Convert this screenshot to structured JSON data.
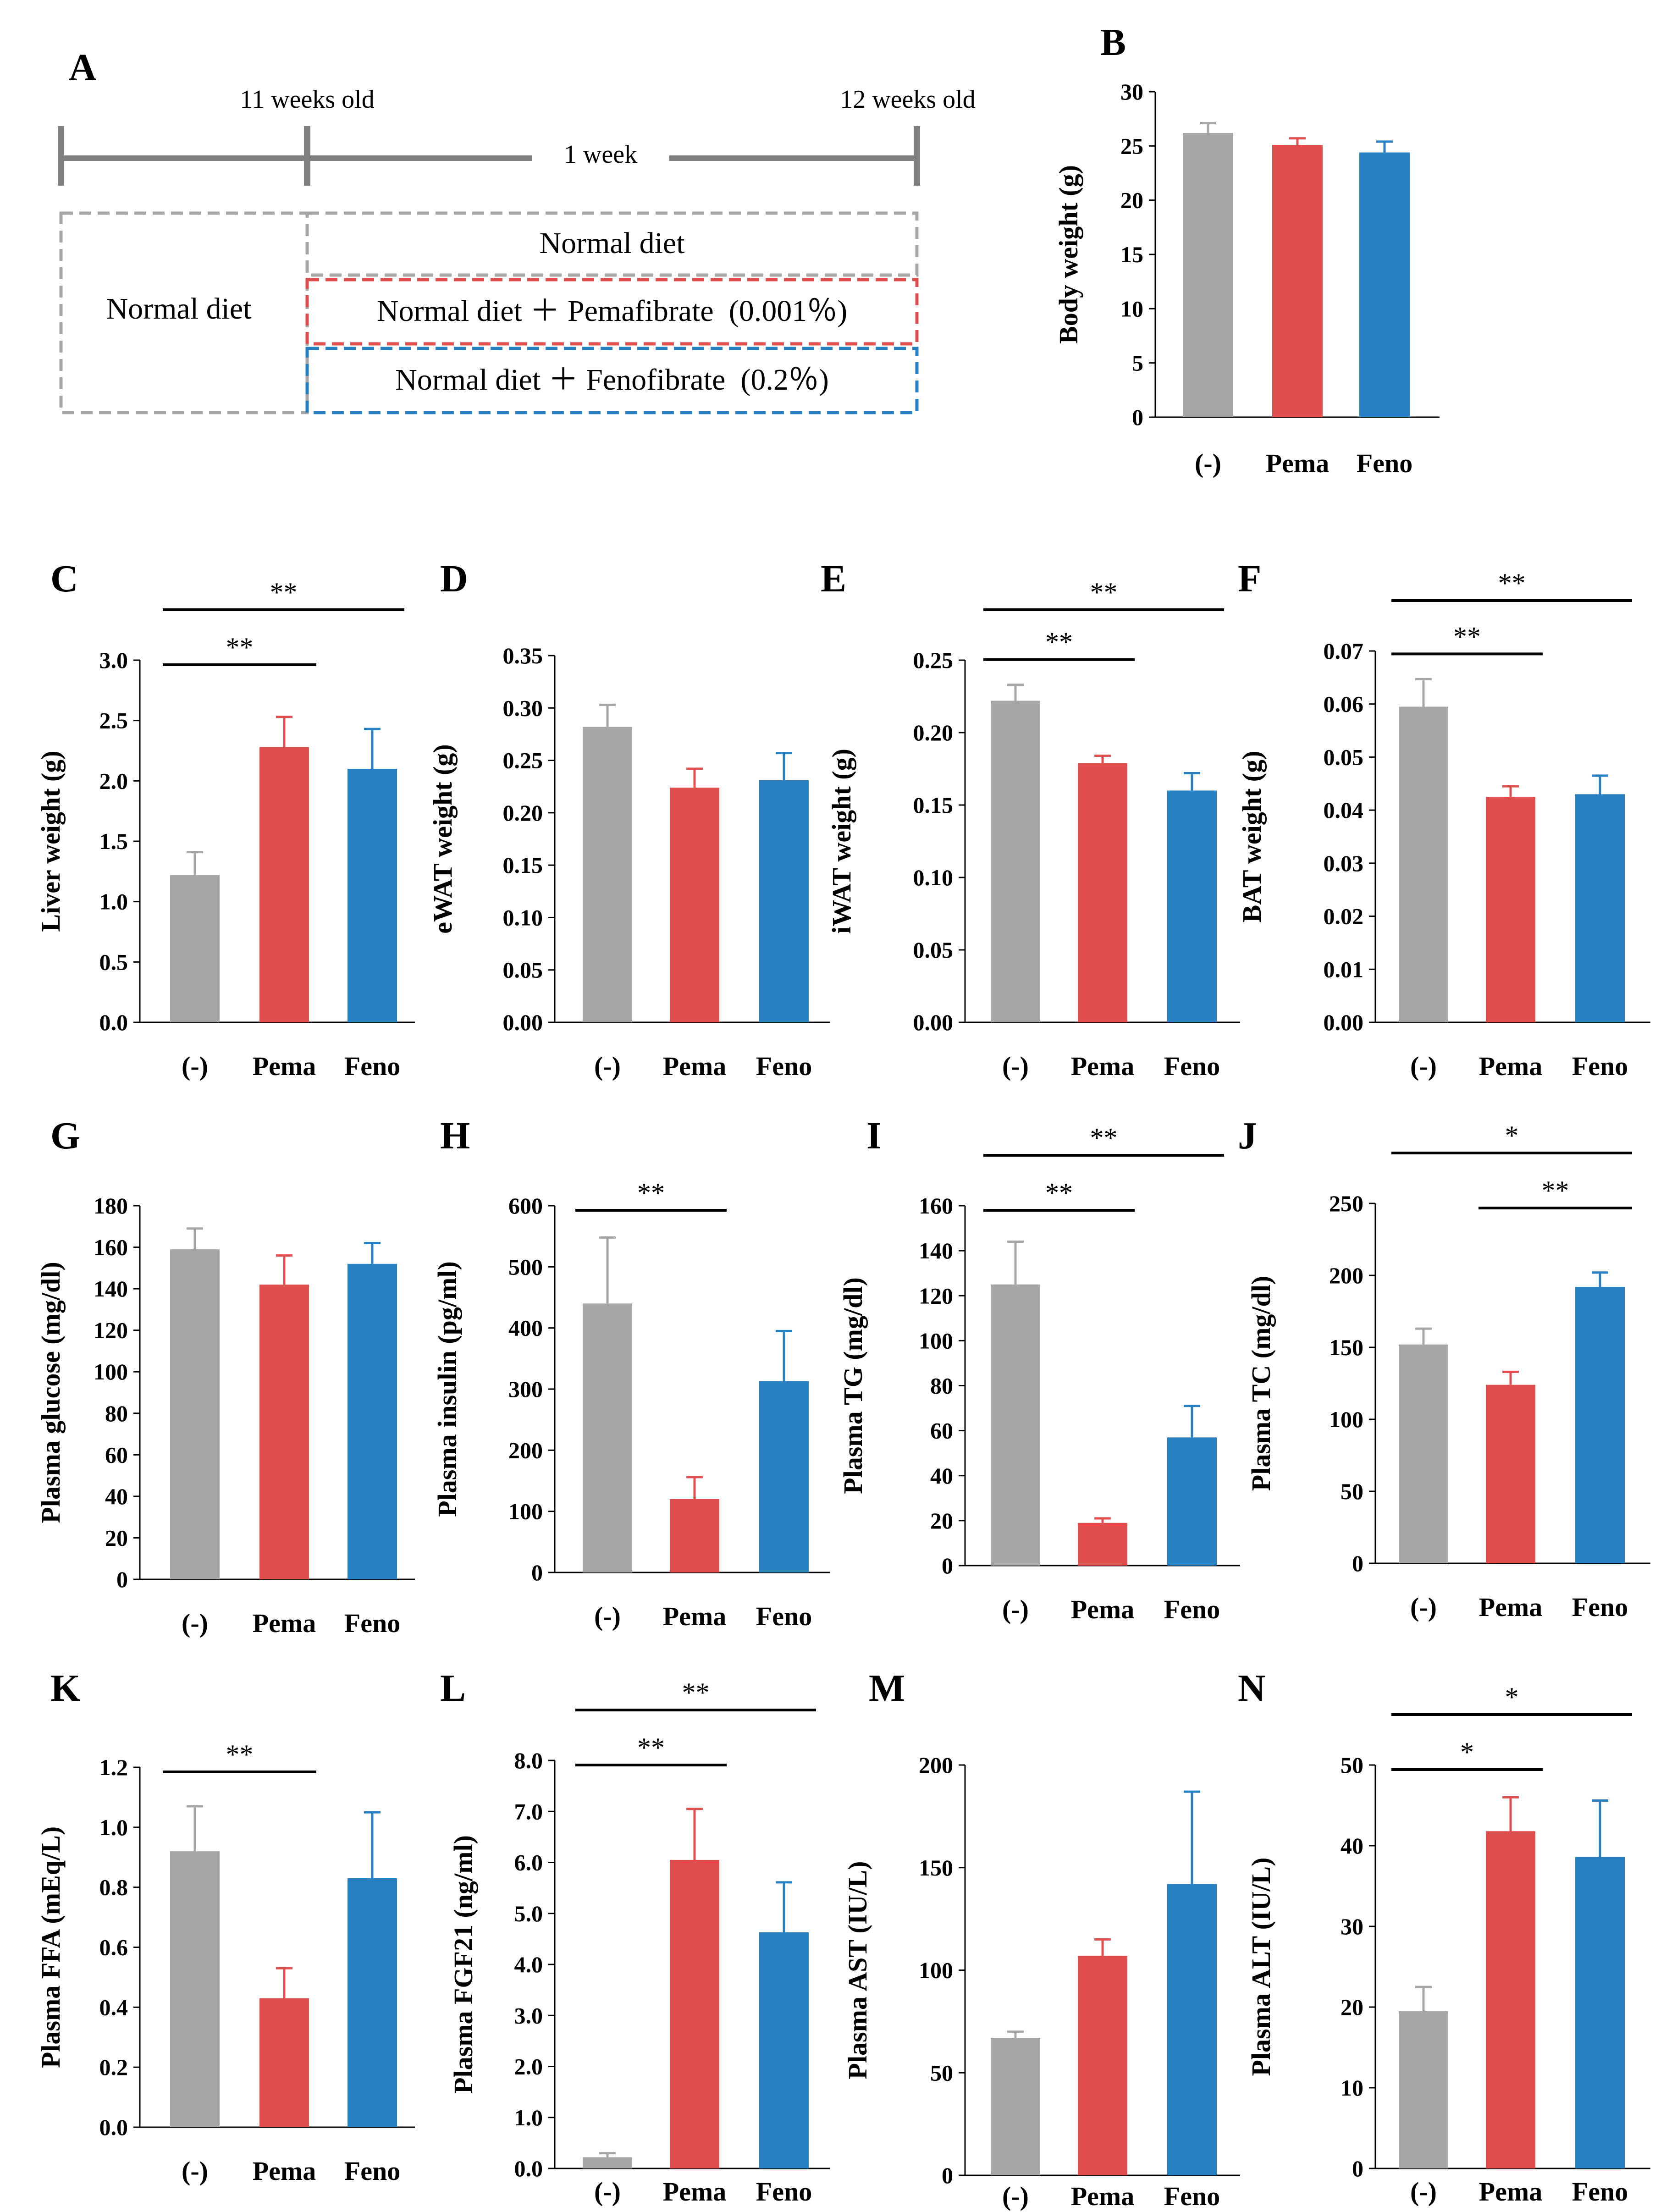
{
  "colors": {
    "control": "#a6a6a6",
    "pema": "#e04e4e",
    "feno": "#2680c2",
    "timeline": "#7f7f7f"
  },
  "panel_a": {
    "label": "A",
    "age_start": "11 weeks old",
    "age_end": "12 weeks old",
    "duration": "1 week",
    "baseline_diet": "Normal diet",
    "groups": [
      {
        "text": "Normal diet",
        "color": "#a6a6a6"
      },
      {
        "text": "Normal diet ＋ Pemafibrate  (0.001％)",
        "color": "#e04e4e"
      },
      {
        "text": "Normal diet ＋ Fenofibrate  (0.2％)",
        "color": "#2680c2"
      }
    ]
  },
  "chart_data": [
    {
      "id": "B",
      "label": "B",
      "type": "bar",
      "categories": [
        "(-)",
        "Pema",
        "Feno"
      ],
      "values": [
        26.2,
        25.1,
        24.4
      ],
      "errors": [
        0.9,
        0.6,
        1.0
      ],
      "ylabel": "Body weight (g)",
      "ylim": [
        0,
        30
      ],
      "ticks": [
        "0",
        "5",
        "10",
        "15",
        "20",
        "25",
        "30"
      ],
      "significance": []
    },
    {
      "id": "C",
      "label": "C",
      "type": "bar",
      "categories": [
        "(-)",
        "Pema",
        "Feno"
      ],
      "values": [
        1.22,
        2.28,
        2.1
      ],
      "errors": [
        0.19,
        0.25,
        0.33
      ],
      "ylabel": "Liver weight (g)",
      "ylim": [
        0,
        3
      ],
      "ticks": [
        "0.0",
        "0.5",
        "1.0",
        "1.5",
        "2.0",
        "2.5",
        "3.0"
      ],
      "significance": [
        {
          "from": 0,
          "to": 1,
          "label": "**"
        },
        {
          "from": 0,
          "to": 2,
          "label": "**"
        }
      ]
    },
    {
      "id": "D",
      "label": "D",
      "type": "bar",
      "categories": [
        "(-)",
        "Pema",
        "Feno"
      ],
      "values": [
        0.282,
        0.224,
        0.231
      ],
      "errors": [
        0.021,
        0.018,
        0.026
      ],
      "ylabel": "eWAT weight (g)",
      "ylim": [
        0,
        0.35
      ],
      "ticks": [
        "0.00",
        "0.05",
        "0.10",
        "0.15",
        "0.20",
        "0.25",
        "0.30",
        "0.35"
      ],
      "significance": []
    },
    {
      "id": "E",
      "label": "E",
      "type": "bar",
      "categories": [
        "(-)",
        "Pema",
        "Feno"
      ],
      "values": [
        0.222,
        0.179,
        0.16
      ],
      "errors": [
        0.011,
        0.005,
        0.012
      ],
      "ylabel": "iWAT weight (g)",
      "ylim": [
        0,
        0.25
      ],
      "ticks": [
        "0.00",
        "0.05",
        "0.10",
        "0.15",
        "0.20",
        "0.25"
      ],
      "significance": [
        {
          "from": 0,
          "to": 1,
          "label": "**"
        },
        {
          "from": 0,
          "to": 2,
          "label": "**"
        }
      ]
    },
    {
      "id": "F",
      "label": "F",
      "type": "bar",
      "categories": [
        "(-)",
        "Pema",
        "Feno"
      ],
      "values": [
        0.0595,
        0.0425,
        0.043
      ],
      "errors": [
        0.0052,
        0.002,
        0.0035
      ],
      "ylabel": "BAT weight (g)",
      "ylim": [
        0,
        0.07
      ],
      "ticks": [
        "0.00",
        "0.01",
        "0.02",
        "0.03",
        "0.04",
        "0.05",
        "0.06",
        "0.07"
      ],
      "significance": [
        {
          "from": 0,
          "to": 1,
          "label": "**"
        },
        {
          "from": 0,
          "to": 2,
          "label": "**"
        }
      ]
    },
    {
      "id": "G",
      "label": "G",
      "type": "bar",
      "categories": [
        "(-)",
        "Pema",
        "Feno"
      ],
      "values": [
        159,
        142,
        152
      ],
      "errors": [
        10,
        14,
        10
      ],
      "ylabel": "Plasma glucose (mg/dl)",
      "ylim": [
        0,
        180
      ],
      "ticks": [
        "0",
        "20",
        "40",
        "60",
        "80",
        "100",
        "120",
        "140",
        "160",
        "180"
      ],
      "significance": []
    },
    {
      "id": "H",
      "label": "H",
      "type": "bar",
      "categories": [
        "(-)",
        "Pema",
        "Feno"
      ],
      "values": [
        440,
        120,
        313
      ],
      "errors": [
        108,
        36,
        82
      ],
      "ylabel": "Plasma insulin (pg/ml)",
      "ylim": [
        0,
        600
      ],
      "ticks": [
        "0",
        "100",
        "200",
        "300",
        "400",
        "500",
        "600"
      ],
      "significance": [
        {
          "from": 0,
          "to": 1,
          "label": "**"
        }
      ]
    },
    {
      "id": "I",
      "label": "I",
      "type": "bar",
      "categories": [
        "(-)",
        "Pema",
        "Feno"
      ],
      "values": [
        125,
        19,
        57
      ],
      "errors": [
        19,
        2,
        14
      ],
      "ylabel": "Plasma TG (mg/dl)",
      "ylim": [
        0,
        160
      ],
      "ticks": [
        "0",
        "20",
        "40",
        "60",
        "80",
        "100",
        "120",
        "140",
        "160"
      ],
      "significance": [
        {
          "from": 0,
          "to": 1,
          "label": "**"
        },
        {
          "from": 0,
          "to": 2,
          "label": "**"
        }
      ]
    },
    {
      "id": "J",
      "label": "J",
      "type": "bar",
      "categories": [
        "(-)",
        "Pema",
        "Feno"
      ],
      "values": [
        152,
        124,
        192
      ],
      "errors": [
        11,
        9,
        10
      ],
      "ylabel": "Plasma TC (mg/dl)",
      "ylim": [
        0,
        250
      ],
      "ticks": [
        "0",
        "50",
        "100",
        "150",
        "200",
        "250"
      ],
      "significance": [
        {
          "from": 1,
          "to": 2,
          "label": "**"
        },
        {
          "from": 0,
          "to": 2,
          "label": "*"
        }
      ]
    },
    {
      "id": "K",
      "label": "K",
      "type": "bar",
      "categories": [
        "(-)",
        "Pema",
        "Feno"
      ],
      "values": [
        0.92,
        0.43,
        0.83
      ],
      "errors": [
        0.15,
        0.1,
        0.22
      ],
      "ylabel": "Plasma FFA (mEq/L)",
      "ylim": [
        0,
        1.2
      ],
      "ticks": [
        "0.0",
        "0.2",
        "0.4",
        "0.6",
        "0.8",
        "1.0",
        "1.2"
      ],
      "significance": [
        {
          "from": 0,
          "to": 1,
          "label": "**"
        }
      ]
    },
    {
      "id": "L",
      "label": "L",
      "type": "bar",
      "categories": [
        "(-)",
        "Pema",
        "Feno"
      ],
      "values": [
        0.22,
        6.05,
        4.63
      ],
      "errors": [
        0.08,
        1.0,
        0.98
      ],
      "ylabel": "Plasma FGF21 (ng/ml)",
      "ylim": [
        0,
        8
      ],
      "ticks": [
        "0.0",
        "1.0",
        "2.0",
        "3.0",
        "4.0",
        "5.0",
        "6.0",
        "7.0",
        "8.0"
      ],
      "significance": [
        {
          "from": 0,
          "to": 1,
          "label": "**"
        },
        {
          "from": 0,
          "to": 2,
          "label": "**"
        }
      ]
    },
    {
      "id": "M",
      "label": "M",
      "type": "bar",
      "categories": [
        "(-)",
        "Pema",
        "Feno"
      ],
      "values": [
        67,
        107,
        142
      ],
      "errors": [
        3,
        8,
        45
      ],
      "ylabel": "Plasma AST (IU/L)",
      "ylim": [
        0,
        200
      ],
      "ticks": [
        "0",
        "50",
        "100",
        "150",
        "200"
      ],
      "significance": []
    },
    {
      "id": "N",
      "label": "N",
      "type": "bar",
      "categories": [
        "(-)",
        "Pema",
        "Feno"
      ],
      "values": [
        19.5,
        41.8,
        38.6
      ],
      "errors": [
        3,
        4.2,
        7
      ],
      "ylabel": "Plasma ALT (IU/L)",
      "ylim": [
        0,
        50
      ],
      "ticks": [
        "0",
        "10",
        "20",
        "30",
        "40",
        "50"
      ],
      "significance": [
        {
          "from": 0,
          "to": 1,
          "label": "*"
        },
        {
          "from": 0,
          "to": 2,
          "label": "*"
        }
      ]
    }
  ]
}
